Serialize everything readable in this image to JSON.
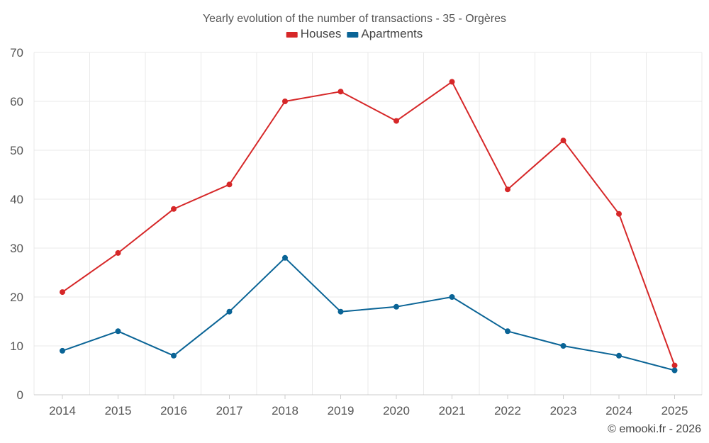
{
  "chart_data": {
    "type": "line",
    "title": "Yearly evolution of the number of transactions - 35 - Orgères",
    "categories": [
      "2014",
      "2015",
      "2016",
      "2017",
      "2018",
      "2019",
      "2020",
      "2021",
      "2022",
      "2023",
      "2024",
      "2025"
    ],
    "series": [
      {
        "name": "Houses",
        "color": "#d62728",
        "values": [
          21,
          29,
          38,
          43,
          60,
          62,
          56,
          64,
          42,
          52,
          37,
          6
        ]
      },
      {
        "name": "Apartments",
        "color": "#0a6496",
        "values": [
          9,
          13,
          8,
          17,
          28,
          17,
          18,
          20,
          13,
          10,
          8,
          5
        ]
      }
    ],
    "yticks": [
      "0",
      "10",
      "20",
      "30",
      "40",
      "50",
      "60",
      "70"
    ],
    "ylim": [
      0,
      70
    ],
    "xlabel": "",
    "ylabel": "",
    "grid": true,
    "legend_position": "top-center"
  },
  "credit": "© emooki.fr - 2026"
}
